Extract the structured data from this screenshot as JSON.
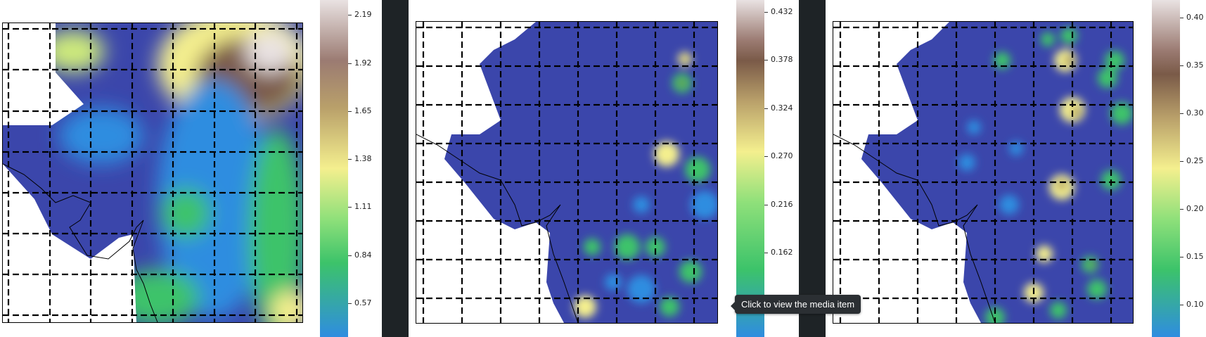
{
  "panels": [
    {
      "name": "map-panel-1",
      "colorbar_ticks": [
        "2.19",
        "1.92",
        "1.65",
        "1.38",
        "1.11",
        "0.84",
        "0.57"
      ]
    },
    {
      "name": "map-panel-2",
      "colorbar_ticks": [
        "0.432",
        "0.378",
        "0.324",
        "0.270",
        "0.216",
        "0.162"
      ]
    },
    {
      "name": "map-panel-3",
      "colorbar_ticks": [
        "0.40",
        "0.35",
        "0.30",
        "0.25",
        "0.20",
        "0.15",
        "0.10"
      ]
    }
  ],
  "tooltip": {
    "text": "Click to view the media item"
  },
  "colors": {
    "low": "#3b46ab",
    "mid_blue": "#2f8de0",
    "green": "#3cc36a",
    "yellow": "#f4ef8e",
    "tan": "#b9a06a",
    "brown": "#7a5a48",
    "high": "#e9e2e2",
    "divider": "#1e2326"
  }
}
